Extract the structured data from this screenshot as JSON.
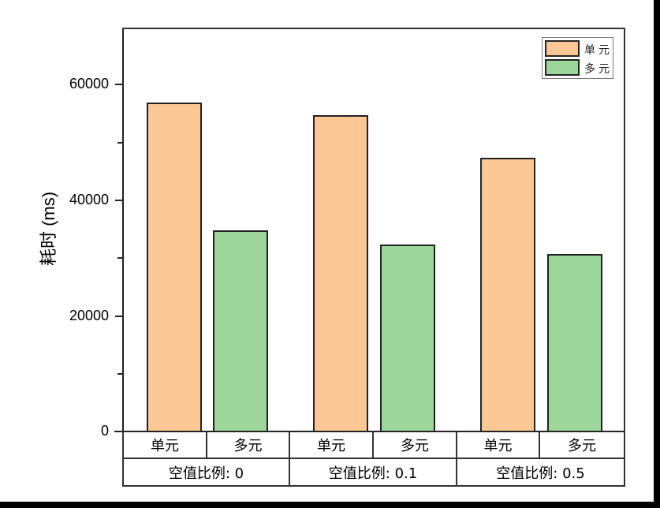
{
  "chart_data": {
    "type": "bar",
    "title": "",
    "xlabel": "",
    "ylabel": "耗时 (ms)",
    "ylim": [
      0,
      70000
    ],
    "yticks": [
      0,
      20000,
      40000,
      60000
    ],
    "ytick_labels": [
      "0",
      "20000",
      "40000",
      "60000"
    ],
    "minor_yticks": [
      10000,
      30000,
      50000
    ],
    "grid": false,
    "legend_position": "upper right",
    "groups": [
      "空值比例: 0",
      "空值比例: 0.1",
      "空值比例: 0.5"
    ],
    "categories": [
      "单元",
      "多元",
      "单元",
      "多元",
      "单元",
      "多元"
    ],
    "series": [
      {
        "name": "单元",
        "color": "#fbc895",
        "values": [
          56900,
          54700,
          47300
        ]
      },
      {
        "name": "多元",
        "color": "#9dd69b",
        "values": [
          34800,
          32300,
          30700
        ]
      }
    ]
  },
  "legend": {
    "items": [
      {
        "label": "单元",
        "color": "#fbc895"
      },
      {
        "label": "多元",
        "color": "#9dd69b"
      }
    ]
  },
  "axis": {
    "y_title": "耗时 (ms)",
    "y_labels": [
      "60000",
      "40000",
      "20000",
      "0"
    ]
  },
  "x_table": {
    "row1": [
      "单元",
      "多元",
      "单元",
      "多元",
      "单元",
      "多元"
    ],
    "row2": [
      "空值比例: 0",
      "空值比例: 0.1",
      "空值比例: 0.5"
    ]
  }
}
